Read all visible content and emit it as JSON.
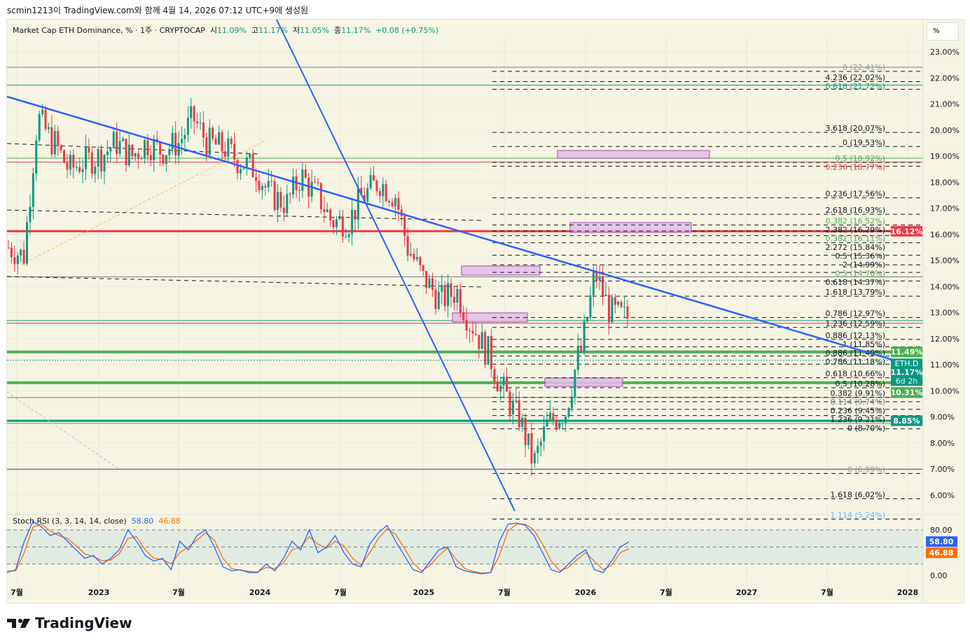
{
  "credit": "scmin1213이 TradingView.com와 함께 4월 14, 2026 07:12 UTC+9에 생성됨",
  "legend": {
    "title": "Market Cap ETH Dominance, % · 1주 · CRYPTOCAP",
    "open_label": "시",
    "open": "11.09%",
    "high_label": "고",
    "high": "11.17%",
    "low_label": "저",
    "low": "11.05%",
    "close_label": "종",
    "close": "11.17%",
    "change": "+0.08 (+0.75%)"
  },
  "percent_button": "%",
  "price_axis": [
    "23.00%",
    "22.00%",
    "21.00%",
    "20.00%",
    "19.00%",
    "18.00%",
    "17.00%",
    "16.00%",
    "15.00%",
    "14.00%",
    "13.00%",
    "12.00%",
    "11.00%",
    "10.00%",
    "9.00%",
    "8.00%",
    "7.00%",
    "6.00%"
  ],
  "badges": [
    {
      "text": "16.12%",
      "price": 16.12,
      "color": "#f23645"
    },
    {
      "text": "11.49%",
      "price": 11.49,
      "color": "#4caf50"
    },
    {
      "text": "10.31%",
      "price": 10.31,
      "color": "#4caf50"
    },
    {
      "text": "8.85%",
      "price": 8.85,
      "color": "#089981"
    }
  ],
  "current": {
    "symbol": "ETH.D",
    "price_text": "11.17%",
    "countdown": "6d 2h",
    "price": 11.17,
    "color": "#089981"
  },
  "hlines": [
    {
      "price": 22.41,
      "color": "#787b86",
      "w": 1
    },
    {
      "price": 21.72,
      "color": "#089981",
      "w": 1
    },
    {
      "price": 18.77,
      "color": "#f23645",
      "w": 1
    },
    {
      "price": 18.92,
      "color": "#4caf50",
      "w": 1
    },
    {
      "price": 16.12,
      "color": "#f23645",
      "w": 3
    },
    {
      "price": 14.37,
      "color": "#787b86",
      "w": 1
    },
    {
      "price": 12.59,
      "color": "#f23645",
      "w": 1
    },
    {
      "price": 12.69,
      "color": "#089981",
      "w": 1
    },
    {
      "price": 11.49,
      "color": "#4caf50",
      "w": 4
    },
    {
      "price": 10.31,
      "color": "#4caf50",
      "w": 4
    },
    {
      "price": 9.74,
      "color": "#787b86",
      "w": 1
    },
    {
      "price": 8.85,
      "color": "#089981",
      "w": 3
    },
    {
      "price": 8.75,
      "color": "#4caf50",
      "w": 1
    },
    {
      "price": 6.99,
      "color": "#787b86",
      "w": 1.5
    }
  ],
  "fib_labels": [
    {
      "text": "0 (22.41%)",
      "price": 22.41,
      "color": "#9598a1"
    },
    {
      "text": "4.236 (22.02%)",
      "price": 22.02,
      "color": "#131722"
    },
    {
      "text": "0.618 (21.72%)",
      "price": 21.72,
      "color": "#089981"
    },
    {
      "text": "3.618 (20.07%)",
      "price": 20.07,
      "color": "#131722"
    },
    {
      "text": "0 (19.53%)",
      "price": 19.53,
      "color": "#131722"
    },
    {
      "text": "0.5 (18.92%)",
      "price": 18.92,
      "color": "#4caf50"
    },
    {
      "text": "0.236 (18.77%)",
      "price": 18.77,
      "color": "#f23645"
    },
    {
      "text": "0.236 (17.56%)",
      "price": 17.56,
      "color": "#131722"
    },
    {
      "text": "2.618 (16.93%)",
      "price": 16.93,
      "color": "#131722"
    },
    {
      "text": "0.382 (16.52%)",
      "price": 16.52,
      "color": "#4caf50"
    },
    {
      "text": "2.382 (16.29%)",
      "price": 16.29,
      "color": "#131722"
    },
    {
      "text": "0.382 (16.11%)",
      "price": 16.11,
      "color": "#4caf50"
    },
    {
      "text": "2.272 (15.84%)",
      "price": 15.84,
      "color": "#131722"
    },
    {
      "text": "0.5 (15.36%)",
      "price": 15.36,
      "color": "#131722"
    },
    {
      "text": "2 (14.99%)",
      "price": 14.99,
      "color": "#131722"
    },
    {
      "text": "0.5 (14.70%)",
      "price": 14.7,
      "color": "#4caf50"
    },
    {
      "text": "0.618 (14.37%)",
      "price": 14.37,
      "color": "#131722"
    },
    {
      "text": "1.618 (13.79%)",
      "price": 13.79,
      "color": "#131722"
    },
    {
      "text": "0.786 (12.97%)",
      "price": 12.97,
      "color": "#131722"
    },
    {
      "text": "1.236 (12.59%)",
      "price": 12.59,
      "color": "#131722"
    },
    {
      "text": "0.886 (12.13%)",
      "price": 12.13,
      "color": "#131722"
    },
    {
      "text": "1 (11.85%)",
      "price": 11.85,
      "color": "#131722"
    },
    {
      "text": "0.886 (11.49%)",
      "price": 11.49,
      "color": "#131722"
    },
    {
      "text": "0.786 (11.18%)",
      "price": 11.18,
      "color": "#131722"
    },
    {
      "text": "0.618 (10.66%)",
      "price": 10.66,
      "color": "#131722"
    },
    {
      "text": "0.5 (10.28%)",
      "price": 10.28,
      "color": "#131722"
    },
    {
      "text": "0.382 (9.91%)",
      "price": 9.91,
      "color": "#131722"
    },
    {
      "text": "0.114 (9.74%)",
      "price": 9.74,
      "color": "#787b86"
    },
    {
      "text": "0.236 (9.45%)",
      "price": 9.45,
      "color": "#131722"
    },
    {
      "text": "1.236 (9.21%)",
      "price": 9.21,
      "color": "#131722"
    },
    {
      "text": "0 (8.70%)",
      "price": 8.7,
      "color": "#131722"
    },
    {
      "text": "0 (6.99%)",
      "price": 6.99,
      "color": "#9598a1"
    },
    {
      "text": "1.618 (6.02%)",
      "price": 6.02,
      "color": "#131722"
    },
    {
      "text": "1.114 (5.24%)",
      "price": 5.24,
      "color": "#64b5f6"
    }
  ],
  "time_axis": [
    "7월",
    "2023",
    "7월",
    "2024",
    "7월",
    "2025",
    "7월",
    "2026",
    "7월",
    "2027",
    "7월",
    "2028"
  ],
  "stoch": {
    "label": "Stoch RSI (3, 3, 14, 14, close)",
    "k": "58.80",
    "d": "46.88",
    "k_color": "#2962ff",
    "d_color": "#ff6d00",
    "axis": [
      "80.00",
      "0.00"
    ]
  },
  "logo": "TradingView",
  "chart_data": {
    "type": "candlestick",
    "title": "Market Cap ETH Dominance, % · 1주",
    "ylim": [
      5,
      23.4
    ],
    "monthly_close": [
      15.5,
      15.2,
      20.4,
      19.5,
      18.5,
      18.8,
      19.0,
      19.5,
      19.0,
      19.5,
      19.2,
      19.5,
      20.4,
      19.5,
      19.3,
      18.8,
      18.5,
      17.5,
      17.2,
      18.2,
      17.5,
      16.5,
      16.5,
      17.5,
      18.0,
      17.5,
      15.3,
      14.2,
      13.5,
      13.8,
      12.5,
      11.5,
      10.0,
      9.0,
      7.3,
      8.8,
      9.2,
      11.5,
      14.4,
      13.0,
      12.8,
      12.0,
      12.3,
      12.5,
      10.5,
      10.6,
      11.17
    ],
    "stoch_k": [
      5,
      10,
      60,
      95,
      85,
      70,
      75,
      60,
      45,
      30,
      35,
      20,
      30,
      45,
      80,
      60,
      35,
      25,
      30,
      10,
      60,
      45,
      70,
      80,
      50,
      15,
      8,
      10,
      5,
      5,
      20,
      8,
      30,
      60,
      45,
      80,
      40,
      50,
      70,
      40,
      20,
      15,
      55,
      75,
      88,
      60,
      35,
      10,
      5,
      25,
      45,
      50,
      15,
      8,
      5,
      3,
      5,
      60,
      90,
      92,
      88,
      70,
      40,
      10,
      5,
      20,
      35,
      45,
      10,
      5,
      25,
      50,
      58.8
    ],
    "stoch_d": [
      8,
      8,
      40,
      85,
      90,
      78,
      70,
      65,
      52,
      38,
      33,
      26,
      27,
      38,
      65,
      68,
      45,
      30,
      28,
      20,
      40,
      50,
      62,
      75,
      62,
      30,
      12,
      9,
      7,
      6,
      14,
      12,
      22,
      45,
      50,
      68,
      55,
      48,
      60,
      52,
      30,
      18,
      40,
      65,
      82,
      72,
      48,
      22,
      8,
      18,
      35,
      48,
      28,
      12,
      7,
      4,
      5,
      35,
      78,
      90,
      90,
      80,
      55,
      25,
      8,
      14,
      28,
      40,
      25,
      10,
      18,
      40,
      46.88
    ]
  }
}
